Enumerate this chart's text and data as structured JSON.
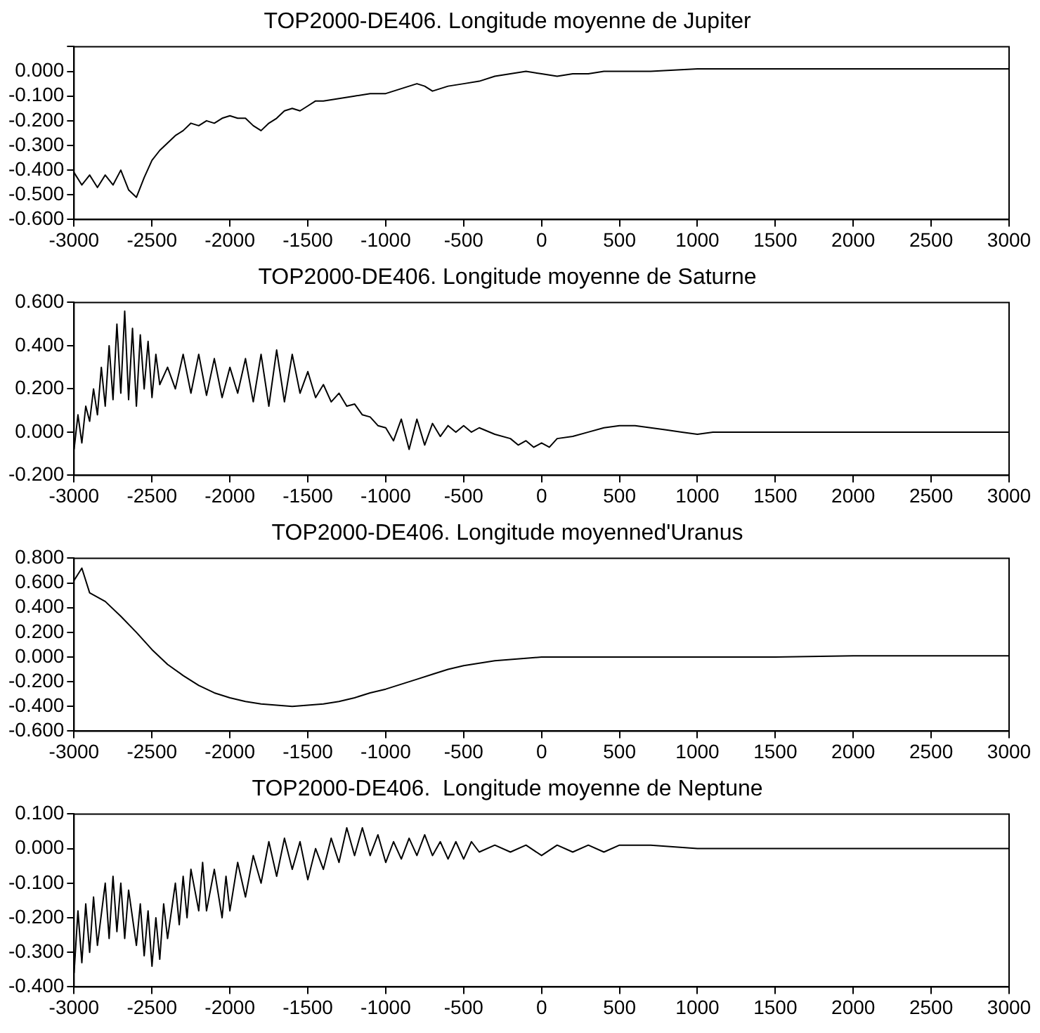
{
  "chart_data": [
    {
      "type": "line",
      "title": "TOP2000-DE406. Longitude moyenne de Jupiter",
      "color": "#000000",
      "grid": false,
      "legend": false,
      "marker": "none",
      "line_style": "solid",
      "xlim": [
        -3000,
        3000
      ],
      "xticks": [
        -3000,
        -2500,
        -2000,
        -1500,
        -1000,
        -500,
        0,
        500,
        1000,
        1500,
        2000,
        2500,
        3000
      ],
      "ylim": [
        -0.6,
        0.1
      ],
      "yticks": [
        {
          "value": -0.6,
          "label": "-0.600"
        },
        {
          "value": -0.5,
          "label": "-0.500"
        },
        {
          "value": -0.4,
          "label": "-0.400"
        },
        {
          "value": -0.3,
          "label": "-0.300"
        },
        {
          "value": -0.2,
          "label": "-0.200"
        },
        {
          "value": -0.1,
          "label": "-0.100"
        },
        {
          "value": 0,
          "label": "0.000"
        },
        {
          "value": 0.1,
          "label": null
        }
      ],
      "x": [
        -3000,
        -2950,
        -2900,
        -2850,
        -2800,
        -2750,
        -2700,
        -2650,
        -2600,
        -2550,
        -2500,
        -2450,
        -2400,
        -2350,
        -2300,
        -2250,
        -2200,
        -2150,
        -2100,
        -2050,
        -2000,
        -1950,
        -1900,
        -1850,
        -1800,
        -1750,
        -1700,
        -1650,
        -1600,
        -1550,
        -1500,
        -1450,
        -1400,
        -1300,
        -1200,
        -1100,
        -1000,
        -900,
        -800,
        -750,
        -700,
        -650,
        -600,
        -500,
        -400,
        -300,
        -200,
        -100,
        0,
        100,
        200,
        300,
        400,
        500,
        700,
        1000,
        1500,
        2000,
        2500,
        3000
      ],
      "values": [
        -0.41,
        -0.46,
        -0.42,
        -0.47,
        -0.42,
        -0.46,
        -0.4,
        -0.48,
        -0.51,
        -0.43,
        -0.36,
        -0.32,
        -0.29,
        -0.26,
        -0.24,
        -0.21,
        -0.22,
        -0.2,
        -0.21,
        -0.19,
        -0.18,
        -0.19,
        -0.19,
        -0.22,
        -0.24,
        -0.21,
        -0.19,
        -0.16,
        -0.15,
        -0.16,
        -0.14,
        -0.12,
        -0.12,
        -0.11,
        -0.1,
        -0.09,
        -0.09,
        -0.07,
        -0.05,
        -0.06,
        -0.08,
        -0.07,
        -0.06,
        -0.05,
        -0.04,
        -0.02,
        -0.01,
        0.0,
        -0.01,
        -0.02,
        -0.01,
        -0.01,
        0.0,
        0.0,
        0.0,
        0.01,
        0.01,
        0.01,
        0.01,
        0.01
      ]
    },
    {
      "type": "line",
      "title": "TOP2000-DE406. Longitude moyenne de Saturne",
      "color": "#000000",
      "grid": false,
      "legend": false,
      "marker": "none",
      "line_style": "solid",
      "xlim": [
        -3000,
        3000
      ],
      "xticks": [
        -3000,
        -2500,
        -2000,
        -1500,
        -1000,
        -500,
        0,
        500,
        1000,
        1500,
        2000,
        2500,
        3000
      ],
      "ylim": [
        -0.2,
        0.6
      ],
      "yticks": [
        {
          "value": -0.2,
          "label": "-0.200"
        },
        {
          "value": 0,
          "label": "0.000"
        },
        {
          "value": 0.2,
          "label": "0.200"
        },
        {
          "value": 0.4,
          "label": "0.400"
        },
        {
          "value": 0.6,
          "label": "0.600"
        }
      ],
      "x": [
        -3000,
        -2975,
        -2950,
        -2925,
        -2900,
        -2875,
        -2850,
        -2825,
        -2800,
        -2775,
        -2750,
        -2725,
        -2700,
        -2675,
        -2650,
        -2625,
        -2600,
        -2575,
        -2550,
        -2525,
        -2500,
        -2475,
        -2450,
        -2400,
        -2350,
        -2300,
        -2250,
        -2200,
        -2150,
        -2100,
        -2050,
        -2000,
        -1950,
        -1900,
        -1850,
        -1800,
        -1750,
        -1700,
        -1650,
        -1600,
        -1550,
        -1500,
        -1450,
        -1400,
        -1350,
        -1300,
        -1250,
        -1200,
        -1150,
        -1100,
        -1050,
        -1000,
        -950,
        -900,
        -850,
        -800,
        -750,
        -700,
        -650,
        -600,
        -550,
        -500,
        -450,
        -400,
        -300,
        -200,
        -150,
        -100,
        -50,
        0,
        50,
        100,
        200,
        300,
        400,
        500,
        600,
        700,
        800,
        900,
        1000,
        1100,
        1200,
        1500,
        2000,
        2500,
        3000
      ],
      "values": [
        -0.08,
        0.08,
        -0.05,
        0.12,
        0.05,
        0.2,
        0.08,
        0.3,
        0.12,
        0.4,
        0.15,
        0.5,
        0.18,
        0.56,
        0.15,
        0.48,
        0.12,
        0.45,
        0.2,
        0.42,
        0.16,
        0.36,
        0.22,
        0.3,
        0.2,
        0.36,
        0.18,
        0.36,
        0.17,
        0.34,
        0.16,
        0.3,
        0.18,
        0.34,
        0.14,
        0.36,
        0.12,
        0.38,
        0.14,
        0.36,
        0.18,
        0.28,
        0.16,
        0.22,
        0.14,
        0.18,
        0.12,
        0.13,
        0.08,
        0.07,
        0.03,
        0.02,
        -0.04,
        0.06,
        -0.08,
        0.06,
        -0.06,
        0.04,
        -0.02,
        0.03,
        0.0,
        0.03,
        0.0,
        0.02,
        -0.01,
        -0.03,
        -0.06,
        -0.04,
        -0.07,
        -0.05,
        -0.07,
        -0.03,
        -0.02,
        0.0,
        0.02,
        0.03,
        0.03,
        0.02,
        0.01,
        0.0,
        -0.01,
        0.0,
        0.0,
        0.0,
        0.0,
        0.0,
        0.0
      ]
    },
    {
      "type": "line",
      "title": "TOP2000-DE406. Longitude moyenned'Uranus",
      "color": "#000000",
      "grid": false,
      "legend": false,
      "marker": "none",
      "line_style": "solid",
      "xlim": [
        -3000,
        3000
      ],
      "xticks": [
        -3000,
        -2500,
        -2000,
        -1500,
        -1000,
        -500,
        0,
        500,
        1000,
        1500,
        2000,
        2500,
        3000
      ],
      "ylim": [
        -0.6,
        0.8
      ],
      "yticks": [
        {
          "value": -0.6,
          "label": "-0.600"
        },
        {
          "value": -0.4,
          "label": "-0.400"
        },
        {
          "value": -0.2,
          "label": "-0.200"
        },
        {
          "value": 0,
          "label": "0.000"
        },
        {
          "value": 0.2,
          "label": "0.200"
        },
        {
          "value": 0.4,
          "label": "0.400"
        },
        {
          "value": 0.6,
          "label": "0.600"
        },
        {
          "value": 0.8,
          "label": "0.800"
        }
      ],
      "x": [
        -3000,
        -2950,
        -2900,
        -2800,
        -2700,
        -2600,
        -2500,
        -2400,
        -2300,
        -2200,
        -2100,
        -2000,
        -1900,
        -1800,
        -1700,
        -1600,
        -1500,
        -1400,
        -1300,
        -1200,
        -1100,
        -1000,
        -900,
        -800,
        -700,
        -600,
        -500,
        -400,
        -300,
        -200,
        -100,
        0,
        200,
        500,
        1000,
        1500,
        2000,
        2500,
        3000
      ],
      "values": [
        0.62,
        0.72,
        0.52,
        0.45,
        0.33,
        0.2,
        0.06,
        -0.06,
        -0.15,
        -0.23,
        -0.29,
        -0.33,
        -0.36,
        -0.38,
        -0.39,
        -0.4,
        -0.39,
        -0.38,
        -0.36,
        -0.33,
        -0.29,
        -0.26,
        -0.22,
        -0.18,
        -0.14,
        -0.1,
        -0.07,
        -0.05,
        -0.03,
        -0.02,
        -0.01,
        0.0,
        0.0,
        0.0,
        0.0,
        0.0,
        0.01,
        0.01,
        0.01
      ]
    },
    {
      "type": "line",
      "title": "TOP2000-DE406.  Longitude moyenne de Neptune",
      "color": "#000000",
      "grid": false,
      "legend": false,
      "marker": "none",
      "line_style": "solid",
      "xlim": [
        -3000,
        3000
      ],
      "xticks": [
        -3000,
        -2500,
        -2000,
        -1500,
        -1000,
        -500,
        0,
        500,
        1000,
        1500,
        2000,
        2500,
        3000
      ],
      "ylim": [
        -0.4,
        0.1
      ],
      "yticks": [
        {
          "value": -0.4,
          "label": "-0.400"
        },
        {
          "value": -0.3,
          "label": "-0.300"
        },
        {
          "value": -0.2,
          "label": "-0.200"
        },
        {
          "value": -0.1,
          "label": "-0.100"
        },
        {
          "value": 0,
          "label": "0.000"
        },
        {
          "value": 0.1,
          "label": "0.100"
        }
      ],
      "x": [
        -3000,
        -2975,
        -2950,
        -2925,
        -2900,
        -2875,
        -2850,
        -2800,
        -2775,
        -2750,
        -2725,
        -2700,
        -2675,
        -2650,
        -2600,
        -2575,
        -2550,
        -2525,
        -2500,
        -2475,
        -2450,
        -2425,
        -2400,
        -2350,
        -2325,
        -2300,
        -2275,
        -2250,
        -2200,
        -2175,
        -2150,
        -2100,
        -2050,
        -2025,
        -2000,
        -1950,
        -1900,
        -1850,
        -1800,
        -1750,
        -1700,
        -1650,
        -1600,
        -1550,
        -1500,
        -1450,
        -1400,
        -1350,
        -1300,
        -1250,
        -1200,
        -1150,
        -1100,
        -1050,
        -1000,
        -950,
        -900,
        -850,
        -800,
        -750,
        -700,
        -650,
        -600,
        -550,
        -500,
        -450,
        -400,
        -300,
        -200,
        -100,
        0,
        100,
        200,
        300,
        400,
        500,
        700,
        1000,
        1500,
        2000,
        2500,
        3000
      ],
      "values": [
        -0.36,
        -0.18,
        -0.33,
        -0.16,
        -0.3,
        -0.14,
        -0.28,
        -0.1,
        -0.26,
        -0.08,
        -0.24,
        -0.1,
        -0.26,
        -0.12,
        -0.28,
        -0.16,
        -0.31,
        -0.18,
        -0.34,
        -0.2,
        -0.32,
        -0.16,
        -0.26,
        -0.1,
        -0.22,
        -0.08,
        -0.2,
        -0.06,
        -0.18,
        -0.04,
        -0.18,
        -0.06,
        -0.2,
        -0.08,
        -0.18,
        -0.04,
        -0.14,
        -0.02,
        -0.1,
        0.02,
        -0.08,
        0.03,
        -0.06,
        0.02,
        -0.09,
        0.0,
        -0.06,
        0.03,
        -0.04,
        0.06,
        -0.02,
        0.06,
        -0.02,
        0.04,
        -0.04,
        0.02,
        -0.03,
        0.03,
        -0.02,
        0.04,
        -0.02,
        0.02,
        -0.03,
        0.02,
        -0.03,
        0.02,
        -0.01,
        0.01,
        -0.01,
        0.01,
        -0.02,
        0.01,
        -0.01,
        0.01,
        -0.01,
        0.01,
        0.01,
        0.0,
        0.0,
        0.0,
        0.0,
        0.0
      ]
    }
  ]
}
